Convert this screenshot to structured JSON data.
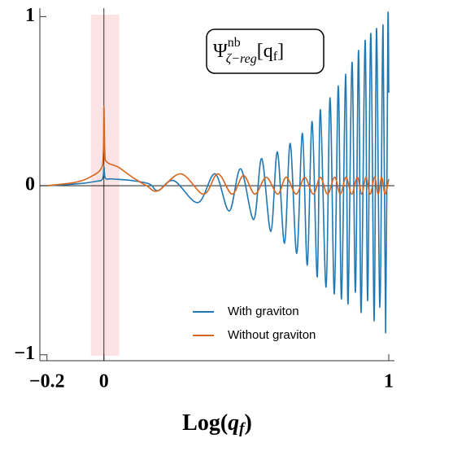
{
  "chart_data": {
    "type": "line",
    "annotation": [
      "Ψ",
      "nb",
      "ζ−reg",
      "[q",
      "f",
      "]"
    ],
    "xlabel": [
      "Log(",
      "q",
      "f",
      ")"
    ],
    "xlim": [
      -0.225,
      1.02
    ],
    "ylim": [
      -1.035,
      1.05
    ],
    "xticks": [
      {
        "value": -0.2,
        "label": "−0.2"
      },
      0,
      1
    ],
    "yticks": [
      {
        "value": -1,
        "label": "−1"
      },
      0,
      1
    ],
    "band": [
      -0.046,
      0.054
    ],
    "band_color": "#fde4e4",
    "legend": "lower right",
    "series": [
      {
        "name": "With graviton",
        "color": "#1f77b4",
        "x": [
          -0.2,
          -0.1,
          -0.03,
          -0.005,
          0,
          0.005,
          0.03,
          0.1,
          0.16,
          0.19,
          0.245,
          0.33,
          0.39,
          0.44,
          0.48,
          0.526,
          0.554,
          0.586,
          0.609,
          0.634,
          0.654,
          0.677,
          0.697,
          0.714,
          0.731,
          0.749,
          0.76,
          0.78,
          0.794,
          0.809,
          0.823,
          0.834,
          0.849,
          0.857,
          0.871,
          0.883,
          0.894,
          0.903,
          0.917,
          0.926,
          0.937,
          0.949,
          0.957,
          0.969,
          0.98,
          0.989,
          0.997,
          1.0
        ],
        "values": [
          0,
          0.01,
          0.025,
          0.04,
          0.11,
          0.045,
          0.04,
          0.03,
          0.01,
          -0.03,
          0.03,
          -0.1,
          0.07,
          -0.15,
          0.1,
          -0.2,
          0.16,
          -0.27,
          0.2,
          -0.34,
          0.25,
          -0.4,
          0.31,
          -0.47,
          0.38,
          -0.54,
          0.45,
          -0.6,
          0.52,
          -0.64,
          0.59,
          -0.67,
          0.66,
          -0.7,
          0.73,
          -0.63,
          0.8,
          -0.75,
          0.86,
          -0.68,
          0.9,
          -0.8,
          0.93,
          -0.72,
          0.95,
          -0.87,
          0.97,
          0.55
        ]
      },
      {
        "name": "Without graviton",
        "color": "#d9641c",
        "x": [
          -0.2,
          -0.1,
          -0.05,
          -0.01,
          -0.002,
          0,
          0.003,
          0.01,
          0.05,
          0.1,
          0.15,
          0.19,
          0.27,
          0.35,
          0.4,
          0.45,
          0.49,
          0.53,
          0.57,
          0.61,
          0.64,
          0.675,
          0.705,
          0.735,
          0.76,
          0.785,
          0.81,
          0.83,
          0.85,
          0.87,
          0.89,
          0.905,
          0.92,
          0.935,
          0.95,
          0.963,
          0.975,
          0.987,
          1.0
        ],
        "values": [
          0,
          0.02,
          0.05,
          0.1,
          0.2,
          0.47,
          0.2,
          0.14,
          0.11,
          0.05,
          0.0,
          -0.03,
          0.07,
          -0.05,
          0.07,
          -0.05,
          0.06,
          -0.05,
          0.05,
          -0.05,
          0.05,
          -0.05,
          0.05,
          -0.05,
          0.05,
          -0.05,
          0.05,
          -0.05,
          0.05,
          -0.05,
          0.05,
          -0.05,
          0.05,
          -0.05,
          0.05,
          -0.05,
          0.05,
          -0.05,
          0.04
        ]
      }
    ]
  }
}
